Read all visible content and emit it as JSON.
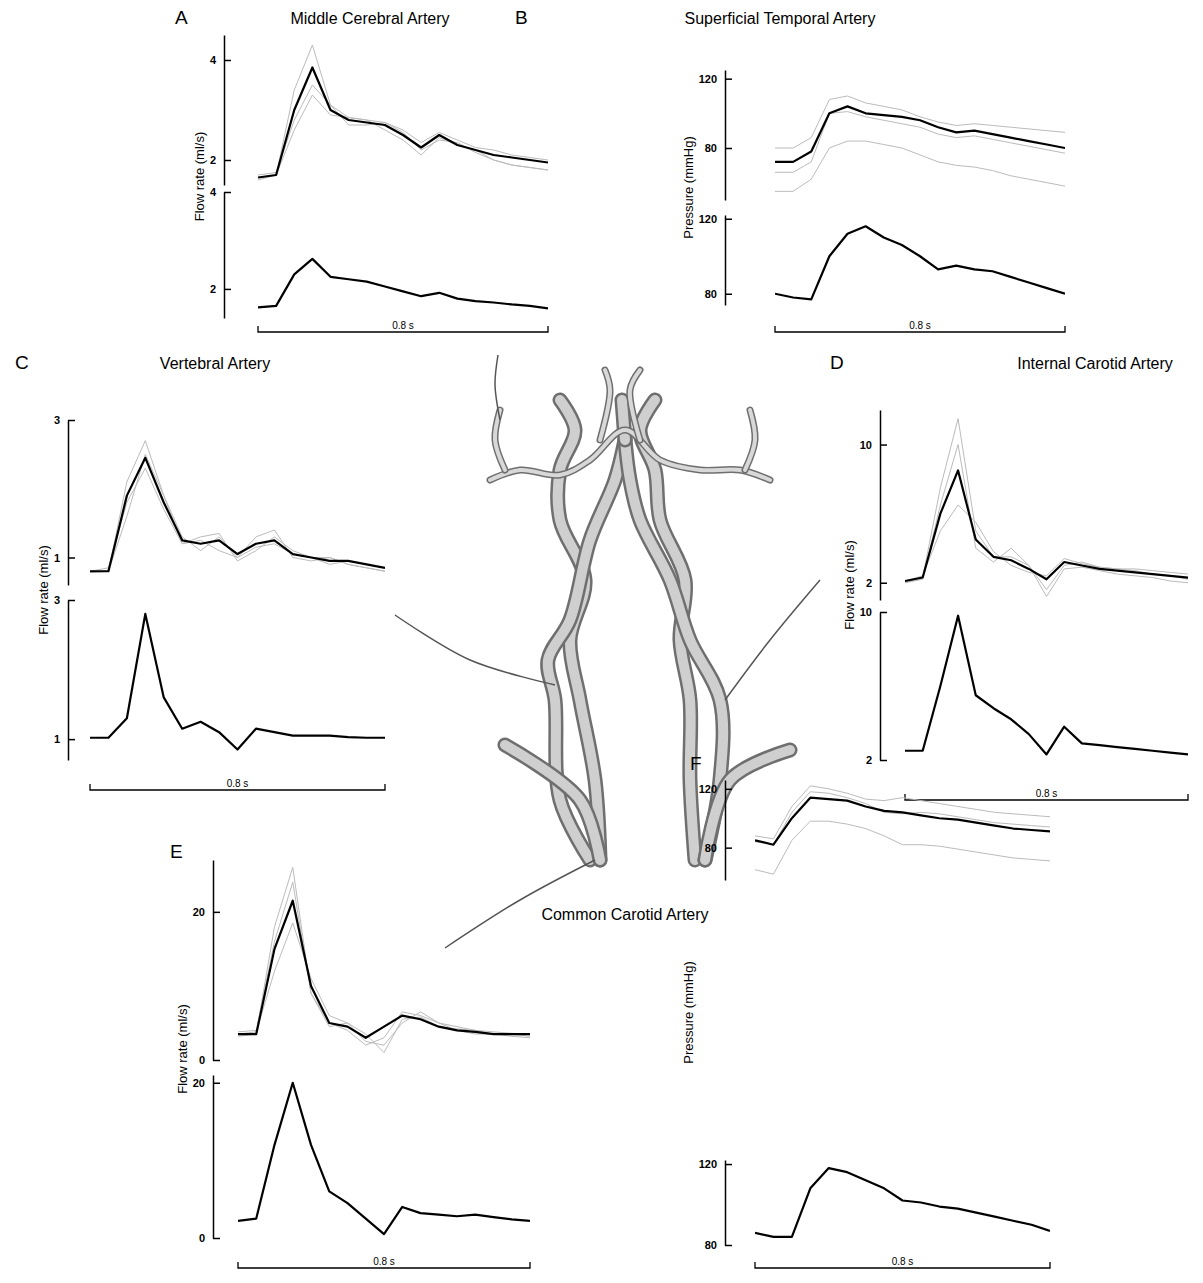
{
  "chart_data": [
    {
      "type": "line",
      "panel": "A",
      "title": "Middle Cerebral Artery",
      "y_label": "Flow rate (ml/s)",
      "tick_labels": "y",
      "time_bar": {
        "value": 0.8,
        "label": "0.8 s"
      },
      "x": [
        0,
        0.05,
        0.1,
        0.15,
        0.2,
        0.25,
        0.3,
        0.35,
        0.4,
        0.45,
        0.5,
        0.55,
        0.6,
        0.65,
        0.7,
        0.75,
        0.8
      ],
      "xlim": [
        0,
        0.8
      ],
      "plots": [
        {
          "ylim": [
            1.5,
            4.5
          ],
          "yticks": [
            2,
            4
          ],
          "series": [
            {
              "color": "#bbbbbb",
              "values": [
                1.6,
                1.7,
                3.4,
                4.3,
                3.1,
                2.85,
                2.8,
                2.6,
                2.4,
                2.1,
                2.45,
                2.3,
                2.2,
                2.0,
                1.9,
                1.85,
                1.8
              ]
            },
            {
              "color": "#bbbbbb",
              "values": [
                1.7,
                1.75,
                2.8,
                3.5,
                3.1,
                2.7,
                2.7,
                2.75,
                2.6,
                2.35,
                2.55,
                2.4,
                2.25,
                2.2,
                2.1,
                2.05,
                2.0
              ]
            },
            {
              "color": "#bbbbbb",
              "values": [
                1.65,
                1.7,
                2.6,
                3.3,
                2.9,
                2.85,
                2.8,
                2.75,
                2.55,
                2.2,
                2.4,
                2.35,
                2.15,
                2.0,
                1.9,
                1.85,
                1.8
              ]
            },
            {
              "color": "#000000",
              "values": [
                1.65,
                1.7,
                3.0,
                3.85,
                3.0,
                2.8,
                2.75,
                2.7,
                2.5,
                2.25,
                2.5,
                2.3,
                2.2,
                2.1,
                2.05,
                2.0,
                1.95
              ]
            }
          ]
        },
        {
          "ylim": [
            1.4,
            4
          ],
          "yticks": [
            2,
            4
          ],
          "series": [
            {
              "color": "#000000",
              "values": [
                1.62,
                1.65,
                2.3,
                2.62,
                2.25,
                2.2,
                2.15,
                2.05,
                1.95,
                1.85,
                1.92,
                1.8,
                1.75,
                1.72,
                1.68,
                1.65,
                1.6
              ]
            }
          ]
        }
      ]
    },
    {
      "type": "line",
      "panel": "B",
      "title": "Superficial Temporal Artery",
      "y_label": "Pressure (mmHg)",
      "tick_labels": "y",
      "time_bar": {
        "value": 0.8,
        "label": "0.8 s"
      },
      "x": [
        0,
        0.05,
        0.1,
        0.15,
        0.2,
        0.25,
        0.3,
        0.35,
        0.4,
        0.45,
        0.5,
        0.55,
        0.6,
        0.65,
        0.7,
        0.75,
        0.8
      ],
      "xlim": [
        0,
        0.8
      ],
      "plots": [
        {
          "ylim": [
            50,
            125
          ],
          "yticks": [
            80,
            120
          ],
          "series": [
            {
              "color": "#bbbbbb",
              "values": [
                80,
                80,
                86,
                108,
                110,
                106,
                104,
                102,
                98,
                95,
                93,
                94,
                93,
                92,
                91,
                90,
                89
              ]
            },
            {
              "color": "#bbbbbb",
              "values": [
                66,
                66,
                72,
                100,
                101,
                98,
                96,
                94,
                92,
                88,
                86,
                87,
                85,
                83,
                81,
                79,
                77
              ]
            },
            {
              "color": "#bbbbbb",
              "values": [
                55,
                55,
                62,
                80,
                84,
                84,
                82,
                80,
                76,
                72,
                70,
                69,
                67,
                64,
                62,
                60,
                58
              ]
            },
            {
              "color": "#000000",
              "values": [
                72,
                72,
                78,
                100,
                104,
                100,
                99,
                98,
                96,
                92,
                89,
                90,
                88,
                86,
                84,
                82,
                80
              ]
            }
          ]
        },
        {
          "ylim": [
            74,
            122
          ],
          "yticks": [
            80,
            120
          ],
          "series": [
            {
              "color": "#000000",
              "values": [
                80,
                78,
                77,
                100,
                112,
                116,
                110,
                106,
                100,
                93,
                95,
                93,
                92,
                89,
                86,
                83,
                80
              ]
            }
          ]
        }
      ]
    },
    {
      "type": "line",
      "panel": "C",
      "title": "Vertebral Artery",
      "y_label": "Flow rate (ml/s)",
      "tick_labels": "y",
      "time_bar": {
        "value": 0.8,
        "label": "0.8 s"
      },
      "x": [
        0,
        0.05,
        0.1,
        0.15,
        0.2,
        0.25,
        0.3,
        0.35,
        0.4,
        0.45,
        0.5,
        0.55,
        0.6,
        0.65,
        0.7,
        0.75,
        0.8
      ],
      "xlim": [
        0,
        0.8
      ],
      "plots": [
        {
          "ylim": [
            0.6,
            3
          ],
          "yticks": [
            1,
            3
          ],
          "series": [
            {
              "color": "#bbbbbb",
              "values": [
                0.8,
                0.8,
                2.1,
                2.7,
                1.9,
                1.3,
                1.1,
                1.3,
                1.0,
                1.3,
                1.4,
                1.0,
                0.95,
                1.0,
                0.9,
                0.85,
                0.8
              ]
            },
            {
              "color": "#bbbbbb",
              "values": [
                0.8,
                0.85,
                1.8,
                2.3,
                1.7,
                1.2,
                1.25,
                1.1,
                1.0,
                1.15,
                1.2,
                1.05,
                1.0,
                0.9,
                0.95,
                0.9,
                0.85
              ]
            },
            {
              "color": "#bbbbbb",
              "values": [
                0.78,
                0.8,
                1.6,
                2.5,
                1.9,
                1.2,
                1.3,
                1.35,
                0.95,
                1.1,
                1.3,
                1.1,
                1.0,
                1.0,
                0.9,
                0.85,
                0.8
              ]
            },
            {
              "color": "#000000",
              "values": [
                0.8,
                0.8,
                1.9,
                2.45,
                1.8,
                1.25,
                1.2,
                1.25,
                1.05,
                1.2,
                1.25,
                1.05,
                1.0,
                0.95,
                0.95,
                0.9,
                0.85
              ]
            }
          ]
        },
        {
          "ylim": [
            0.7,
            3
          ],
          "yticks": [
            1,
            3
          ],
          "series": [
            {
              "color": "#000000",
              "values": [
                1.02,
                1.02,
                1.3,
                2.8,
                1.6,
                1.15,
                1.25,
                1.1,
                0.85,
                1.15,
                1.1,
                1.05,
                1.05,
                1.05,
                1.03,
                1.02,
                1.02
              ]
            }
          ]
        }
      ]
    },
    {
      "type": "line",
      "panel": "D",
      "title": "Internal Carotid Artery",
      "y_label": "Flow rate (ml/s)",
      "tick_labels": "y",
      "time_bar": {
        "value": 0.8,
        "label": "0.8 s"
      },
      "x": [
        0,
        0.05,
        0.1,
        0.15,
        0.2,
        0.25,
        0.3,
        0.35,
        0.4,
        0.45,
        0.5,
        0.55,
        0.6,
        0.65,
        0.7,
        0.75,
        0.8
      ],
      "xlim": [
        0,
        0.8
      ],
      "plots": [
        {
          "ylim": [
            1,
            12
          ],
          "yticks": [
            2,
            10
          ],
          "series": [
            {
              "color": "#bbbbbb",
              "values": [
                2,
                2.3,
                7.5,
                11.5,
                5,
                3.5,
                3.5,
                3.0,
                1.6,
                3.0,
                3.2,
                2.9,
                2.8,
                2.7,
                2.5,
                2.4,
                2.2
              ]
            },
            {
              "color": "#bbbbbb",
              "values": [
                2.1,
                2.4,
                5,
                6.5,
                5.5,
                3.8,
                3.0,
                2.6,
                2.4,
                3.4,
                3.1,
                2.9,
                2.8,
                2.8,
                2.7,
                2.6,
                2.5
              ]
            },
            {
              "color": "#bbbbbb",
              "values": [
                2.0,
                2.2,
                6.5,
                10,
                4.0,
                3.2,
                4.0,
                3.0,
                1.2,
                2.8,
                2.9,
                2.7,
                2.5,
                2.4,
                2.3,
                2.1,
                2.0
              ]
            },
            {
              "color": "#000000",
              "values": [
                2.1,
                2.3,
                6,
                8.5,
                4.5,
                3.5,
                3.3,
                2.8,
                2.2,
                3.2,
                3,
                2.8,
                2.7,
                2.6,
                2.5,
                2.4,
                2.3
              ]
            }
          ]
        },
        {
          "ylim": [
            2,
            10
          ],
          "yticks": [
            2,
            10
          ],
          "series": [
            {
              "color": "#000000",
              "values": [
                2.5,
                2.5,
                6,
                9.8,
                5.5,
                4.8,
                4.2,
                3.4,
                2.3,
                3.8,
                2.9,
                2.8,
                2.7,
                2.6,
                2.5,
                2.4,
                2.3
              ]
            }
          ]
        }
      ]
    },
    {
      "type": "line",
      "panel": "E",
      "title": "Common Carotid Artery",
      "y_label": "Flow rate (ml/s)",
      "tick_labels": "y",
      "time_bar": {
        "value": 0.8,
        "label": "0.8 s"
      },
      "x": [
        0,
        0.05,
        0.1,
        0.15,
        0.2,
        0.25,
        0.3,
        0.35,
        0.4,
        0.45,
        0.5,
        0.55,
        0.6,
        0.65,
        0.7,
        0.75,
        0.8
      ],
      "xlim": [
        0,
        0.8
      ],
      "plots": [
        {
          "ylim": [
            0,
            27
          ],
          "yticks": [
            0,
            20
          ],
          "series": [
            {
              "color": "#bbbbbb",
              "values": [
                3.2,
                3.5,
                18,
                26,
                9,
                5,
                4,
                2,
                3,
                6.5,
                6,
                5,
                4.5,
                4,
                3.5,
                3.5,
                3.2
              ]
            },
            {
              "color": "#bbbbbb",
              "values": [
                3.5,
                3.8,
                12,
                18.5,
                11,
                6,
                5,
                2.5,
                2,
                5,
                6.5,
                5,
                4,
                3.5,
                3.5,
                3.2,
                3
              ]
            },
            {
              "color": "#bbbbbb",
              "values": [
                3.8,
                4,
                16,
                24,
                9,
                4.5,
                5,
                3.5,
                1,
                5.5,
                5.8,
                4.5,
                4.2,
                4,
                3.8,
                3.6,
                3.5
              ]
            },
            {
              "color": "#000000",
              "values": [
                3.5,
                3.5,
                15,
                21.5,
                10,
                5,
                4.5,
                3,
                4.5,
                6,
                5.5,
                4.5,
                4,
                3.8,
                3.5,
                3.5,
                3.5
              ]
            }
          ]
        },
        {
          "ylim": [
            0,
            21
          ],
          "yticks": [
            0,
            20
          ],
          "series": [
            {
              "color": "#000000",
              "values": [
                2.2,
                2.5,
                12,
                20,
                12,
                6,
                4.5,
                2.5,
                0.5,
                4,
                3.2,
                3,
                2.8,
                3,
                2.7,
                2.4,
                2.2
              ]
            }
          ]
        }
      ]
    },
    {
      "type": "line",
      "panel": "F",
      "y_label": "Pressure (mmHg)",
      "tick_labels": "y",
      "time_bar": {
        "value": 0.8,
        "label": "0.8 s"
      },
      "x": [
        0,
        0.05,
        0.1,
        0.15,
        0.2,
        0.25,
        0.3,
        0.35,
        0.4,
        0.45,
        0.5,
        0.55,
        0.6,
        0.65,
        0.7,
        0.75,
        0.8
      ],
      "xlim": [
        0,
        0.8
      ],
      "plots": [
        {
          "ylim": [
            58,
            126
          ],
          "yticks": [
            80,
            120
          ],
          "series": [
            {
              "color": "#bbbbbb",
              "values": [
                88,
                86,
                108,
                122,
                120,
                117,
                113,
                112,
                114,
                112,
                110,
                108,
                106,
                104,
                103,
                102,
                101
              ]
            },
            {
              "color": "#bbbbbb",
              "values": [
                84,
                82,
                104,
                118,
                117,
                114,
                110,
                104,
                103,
                104,
                103,
                101,
                99,
                97,
                96,
                95,
                94
              ]
            },
            {
              "color": "#bbbbbb",
              "values": [
                65,
                62,
                85,
                98,
                98,
                96,
                93,
                88,
                82,
                82,
                81,
                79,
                77,
                75,
                73,
                72,
                71
              ]
            },
            {
              "color": "#000000",
              "values": [
                85,
                82,
                100,
                114,
                113,
                112,
                108,
                105,
                104,
                102,
                100,
                99,
                97,
                95,
                93,
                92,
                91
              ]
            }
          ]
        },
        {
          "ylim": [
            80,
            122
          ],
          "yticks": [
            80,
            120
          ],
          "series": [
            {
              "color": "#000000",
              "values": [
                86,
                84,
                84,
                108,
                118,
                116,
                112,
                108,
                102,
                101,
                99,
                98,
                96,
                94,
                92,
                90,
                87
              ]
            }
          ]
        }
      ]
    }
  ]
}
